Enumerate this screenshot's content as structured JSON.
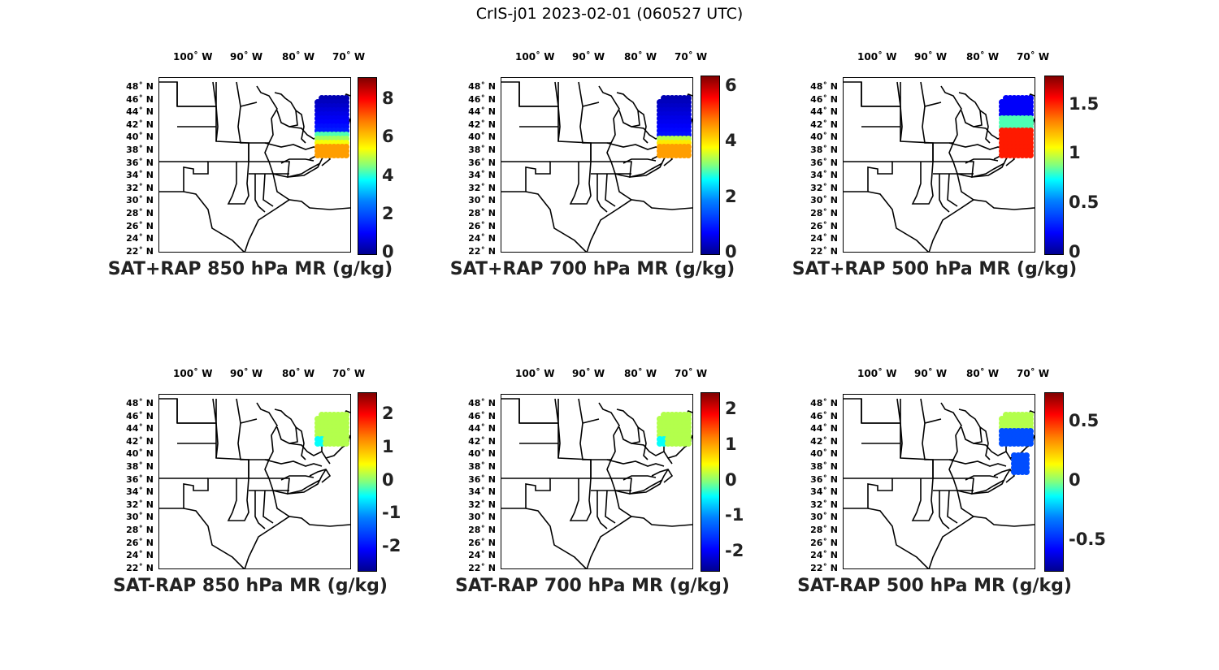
{
  "figure_title": "CrIS-j01 2023-02-01 (060527 UTC)",
  "lon_ticks": [
    "100˚ W",
    "90˚ W",
    "80˚ W",
    "70˚ W"
  ],
  "lat_ticks": [
    "48˚ N",
    "46˚ N",
    "44˚ N",
    "42˚ N",
    "40˚ N",
    "38˚ N",
    "36˚ N",
    "34˚ N",
    "32˚ N",
    "30˚ N",
    "28˚ N",
    "26˚ N",
    "24˚ N",
    "22˚ N"
  ],
  "colormap": "jet",
  "panels": [
    {
      "label": "SAT+RAP 850 hPa MR (g/kg)",
      "colorbar_ticks": [
        "8",
        "6",
        "4",
        "2",
        "0"
      ],
      "colorbar_range": [
        0,
        9.2
      ]
    },
    {
      "label": "SAT+RAP 700 hPa MR (g/kg)",
      "colorbar_ticks": [
        "6",
        "4",
        "2",
        "0"
      ],
      "colorbar_range": [
        0,
        6.4
      ]
    },
    {
      "label": "SAT+RAP 500 hPa MR (g/kg)",
      "colorbar_ticks": [
        "1.5",
        "1",
        "0.5",
        "0"
      ],
      "colorbar_range": [
        0,
        1.8
      ]
    },
    {
      "label": "SAT-RAP 850 hPa MR (g/kg)",
      "colorbar_ticks": [
        "2",
        "1",
        "0",
        "-1",
        "-2"
      ],
      "colorbar_range": [
        -2.7,
        2.7
      ]
    },
    {
      "label": "SAT-RAP 700 hPa MR (g/kg)",
      "colorbar_ticks": [
        "2",
        "1",
        "0",
        "-1",
        "-2"
      ],
      "colorbar_range": [
        -2.5,
        2.5
      ]
    },
    {
      "label": "SAT-RAP 500 hPa MR (g/kg)",
      "colorbar_ticks": [
        "0.5",
        "0",
        "-0.5"
      ],
      "colorbar_range": [
        -0.75,
        0.75
      ]
    }
  ]
}
